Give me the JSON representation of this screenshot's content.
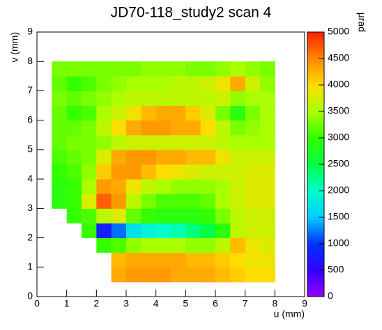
{
  "chart_data": {
    "type": "heatmap",
    "title": "JD70-118_study2 scan 4",
    "x_label": "u (mm)",
    "y_label": "v (mm)",
    "z_label": "µrad",
    "xlim": [
      0,
      9
    ],
    "ylim": [
      0,
      9
    ],
    "zlim": [
      0,
      5000
    ],
    "xticks": [
      0,
      1,
      2,
      3,
      4,
      5,
      6,
      7,
      8,
      9
    ],
    "yticks": [
      0,
      1,
      2,
      3,
      4,
      5,
      6,
      7,
      8,
      9
    ],
    "zticks": [
      0,
      500,
      1000,
      1500,
      2000,
      2500,
      3000,
      3500,
      4000,
      4500,
      5000
    ],
    "colormap": [
      "#9900ff",
      "#3300ff",
      "#0033ff",
      "#00ccff",
      "#00ffcc",
      "#00ff44",
      "#33ff00",
      "#aaff00",
      "#ffdd00",
      "#ff8800",
      "#ff2200"
    ],
    "xbins": [
      0.5,
      1,
      1.5,
      2,
      2.5,
      3,
      3.5,
      4,
      4.5,
      5,
      5.5,
      6,
      6.5,
      7,
      7.5,
      8
    ],
    "ybins": [
      0.5,
      1,
      1.5,
      2,
      2.5,
      3,
      3.5,
      4,
      4.5,
      5,
      5.5,
      6,
      6.5,
      7,
      7.5,
      8
    ],
    "values": [
      [
        null,
        null,
        null,
        null,
        4300,
        4400,
        4400,
        4400,
        4300,
        4300,
        4300,
        4200,
        4100,
        4000,
        4000
      ],
      [
        null,
        null,
        null,
        null,
        4200,
        4300,
        4300,
        4300,
        4300,
        4200,
        4200,
        4100,
        4000,
        3900,
        3900
      ],
      [
        null,
        null,
        null,
        3000,
        3100,
        3400,
        3500,
        3500,
        3500,
        3400,
        3400,
        3600,
        4200,
        3900,
        3800
      ],
      [
        null,
        null,
        3000,
        800,
        1200,
        1700,
        1900,
        2000,
        2100,
        2300,
        2500,
        2900,
        3600,
        3700,
        3700
      ],
      [
        null,
        3000,
        3100,
        3600,
        3800,
        3200,
        3000,
        2900,
        2900,
        2900,
        3000,
        3300,
        3600,
        3700,
        3700
      ],
      [
        2900,
        3000,
        3800,
        4700,
        4400,
        3600,
        3300,
        3100,
        3100,
        3100,
        3200,
        3500,
        3700,
        3800,
        3800
      ],
      [
        2900,
        3000,
        3500,
        4400,
        4300,
        3900,
        3600,
        3500,
        3400,
        3400,
        3400,
        3500,
        3700,
        3800,
        3800
      ],
      [
        3000,
        3100,
        3400,
        4100,
        4400,
        4400,
        4200,
        4000,
        3900,
        3800,
        3700,
        3700,
        3700,
        3800,
        3800
      ],
      [
        3100,
        3200,
        3300,
        3800,
        4300,
        4400,
        4400,
        4300,
        4300,
        4200,
        4200,
        3900,
        3700,
        3700,
        3700
      ],
      [
        3200,
        3300,
        3300,
        3400,
        3600,
        3700,
        3700,
        3700,
        3700,
        3700,
        3700,
        3600,
        3500,
        3500,
        3500
      ],
      [
        3200,
        3200,
        3300,
        3600,
        4000,
        4300,
        4400,
        4400,
        4300,
        4300,
        4000,
        3600,
        3300,
        3400,
        3500
      ],
      [
        3200,
        3000,
        3100,
        3500,
        3700,
        3900,
        4200,
        4300,
        4300,
        4100,
        3800,
        3300,
        2900,
        3300,
        3500
      ],
      [
        3300,
        3200,
        3300,
        3400,
        3500,
        3600,
        3600,
        3600,
        3600,
        3600,
        3600,
        3700,
        3400,
        3500,
        3500
      ],
      [
        3200,
        3000,
        3100,
        3300,
        3400,
        3500,
        3500,
        3500,
        3600,
        3600,
        3700,
        3900,
        4300,
        3700,
        3400
      ],
      [
        3300,
        3300,
        3300,
        3300,
        3300,
        3300,
        3400,
        3400,
        3400,
        3300,
        3300,
        3400,
        3500,
        3400,
        3300
      ]
    ]
  }
}
